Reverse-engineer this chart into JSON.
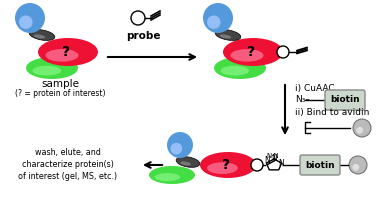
{
  "bg_color": "#ffffff",
  "fig_w": 3.92,
  "fig_h": 2.0,
  "dpi": 100,
  "blue_color": "#5599dd",
  "blue_highlight": "#aaccff",
  "green_color": "#44dd44",
  "green_highlight": "#99ff99",
  "red_color": "#ee1133",
  "red_highlight": "#ff99bb",
  "dark_color": "#444444",
  "dark_highlight": "#aaaaaa",
  "gray_color": "#bbbbbb",
  "gray_highlight": "#dddddd",
  "biotin_box_bg": "#ccd8cc",
  "biotin_box_edge": "#888888",
  "probe_label": "probe",
  "sample_label": "sample",
  "sample_sublabel": "(? = protein of interest)",
  "cuaac_label": "i) CuAAC",
  "n3_biotin_label": "N₃–",
  "biotin_label": "biotin",
  "avidin_label": "ii) Bind to avidin",
  "wash_label": "wash, elute, and\ncharacterize protein(s)\nof interest (gel, MS, etc.)",
  "q_label": "?"
}
